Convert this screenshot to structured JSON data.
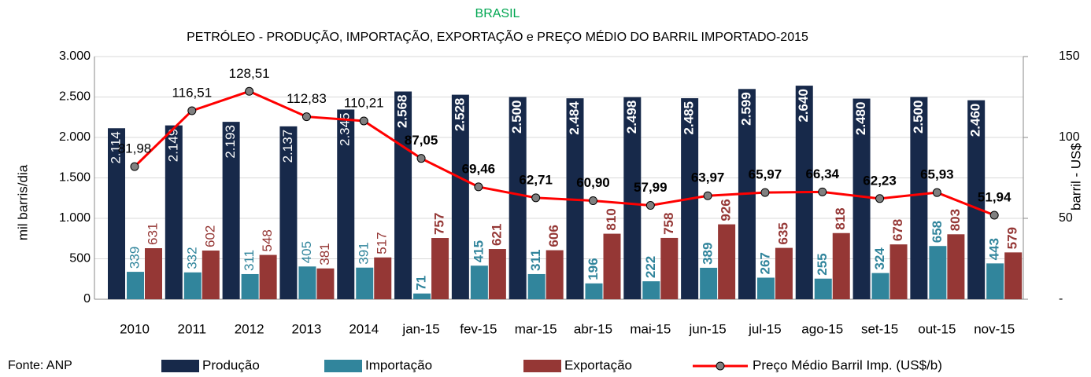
{
  "chart_data": {
    "type": "bar",
    "title": "BRASIL",
    "subtitle": "PETRÓLEO - PRODUÇÃO, IMPORTAÇÃO, EXPORTAÇÃO e PREÇO MÉDIO DO BARRIL IMPORTADO-2015",
    "y_label": "mil barris/dia",
    "y2_label": "barril - US$",
    "source": "Fonte: ANP",
    "categories": [
      "2010",
      "2011",
      "2012",
      "2013",
      "2014",
      "jan-15",
      "fev-15",
      "mar-15",
      "abr-15",
      "mai-15",
      "jun-15",
      "jul-15",
      "ago-15",
      "set-15",
      "out-15",
      "nov-15"
    ],
    "series": [
      {
        "name": "Produção",
        "color": "#17294a",
        "values": [
          2114,
          2149,
          2193,
          2137,
          2345,
          2568,
          2528,
          2500,
          2484,
          2498,
          2485,
          2599,
          2640,
          2480,
          2500,
          2460
        ],
        "value_labels": [
          "2.114",
          "2.149",
          "2.193",
          "2.137",
          "2.345",
          "2.568",
          "2.528",
          "2.500",
          "2.484",
          "2.498",
          "2.485",
          "2.599",
          "2.640",
          "2.480",
          "2.500",
          "2.460"
        ]
      },
      {
        "name": "Importação",
        "color": "#31859c",
        "values": [
          339,
          332,
          311,
          405,
          391,
          71,
          415,
          311,
          196,
          222,
          389,
          267,
          255,
          324,
          658,
          443
        ]
      },
      {
        "name": "Exportação",
        "color": "#953735",
        "values": [
          631,
          602,
          548,
          381,
          517,
          757,
          621,
          606,
          810,
          758,
          926,
          635,
          818,
          678,
          803,
          579
        ]
      },
      {
        "name": "Preço Médio Barril Imp. (US$/b)",
        "color": "#ff0000",
        "type": "line",
        "axis": "y2",
        "values": [
          81.98,
          116.51,
          128.51,
          112.83,
          110.21,
          87.05,
          69.46,
          62.71,
          60.9,
          57.99,
          63.97,
          65.97,
          66.34,
          62.23,
          65.93,
          51.94
        ],
        "value_labels": [
          "81,98",
          "116,51",
          "128,51",
          "112,83",
          "110,21",
          "87,05",
          "69,46",
          "62,71",
          "60,90",
          "57,99",
          "63,97",
          "65,97",
          "66,34",
          "62,23",
          "65,93",
          "51,94"
        ]
      }
    ],
    "ylim": [
      0,
      3000
    ],
    "yticks": [
      0,
      500,
      {
        "value": 1000,
        "label": "1.000"
      },
      {
        "value": 1500,
        "label": "1.500"
      },
      {
        "value": 2000,
        "label": "2.000"
      },
      {
        "value": 2500,
        "label": "2.500"
      },
      {
        "value": 3000,
        "label": "3.000"
      }
    ],
    "y2lim": [
      0,
      150
    ],
    "y2ticks": [
      {
        "value": 0,
        "label": "-"
      },
      50,
      100,
      150
    ],
    "grid": true,
    "legend": "bottom"
  }
}
